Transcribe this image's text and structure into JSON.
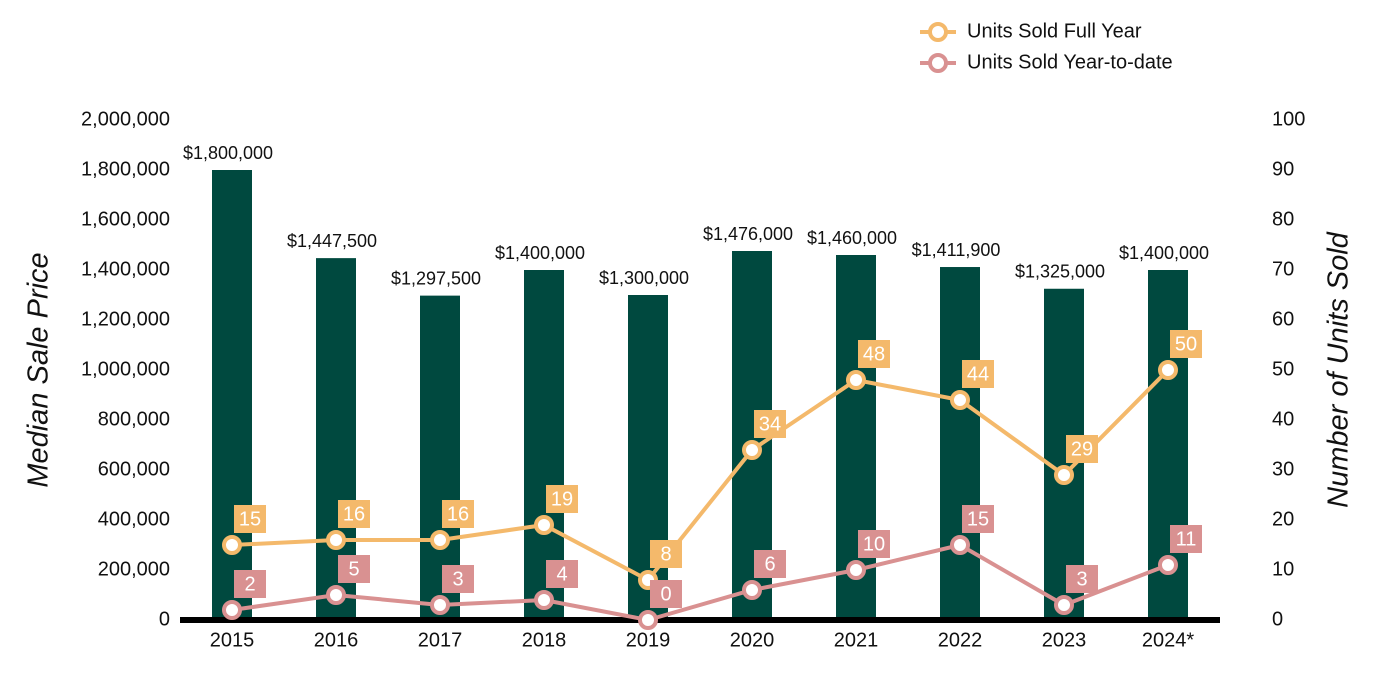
{
  "chart_data": {
    "type": "bar",
    "y_label": "Median Sale Price",
    "y2_label": "Number of Units Sold",
    "categories": [
      "2015",
      "2016",
      "2017",
      "2018",
      "2019",
      "2020",
      "2021",
      "2022",
      "2023",
      "2024*"
    ],
    "values": [
      1800000,
      1447500,
      1297500,
      1400000,
      1300000,
      1476000,
      1460000,
      1411900,
      1325000,
      1400000
    ],
    "value_labels": [
      "$1,800,000",
      "$1,447,500",
      "$1,297,500",
      "$1,400,000",
      "$1,300,000",
      "$1,476,000",
      "$1,460,000",
      "$1,411,900",
      "$1,325,000",
      "$1,400,000"
    ],
    "color": "#00493f",
    "ylim": [
      0,
      2000000
    ],
    "yticks": [
      0,
      {
        "value": 200000,
        "label": "200,000"
      },
      {
        "value": 400000,
        "label": "400,000"
      },
      {
        "value": 600000,
        "label": "600,000"
      },
      {
        "value": 800000,
        "label": "800,000"
      },
      {
        "value": 1000000,
        "label": "1,000,000"
      },
      {
        "value": 1200000,
        "label": "1,200,000"
      },
      {
        "value": 1400000,
        "label": "1,400,000"
      },
      {
        "value": 1600000,
        "label": "1,600,000"
      },
      {
        "value": 1800000,
        "label": "1,800,000"
      },
      {
        "value": 2000000,
        "label": "2,000,000"
      }
    ],
    "y2lim": [
      0,
      100
    ],
    "y2ticks": [
      0,
      10,
      20,
      30,
      40,
      50,
      60,
      70,
      80,
      90,
      100
    ],
    "series": [
      {
        "name": "Units Sold Full Year",
        "type": "line",
        "axis": "y2",
        "color": "#f4b96b",
        "values": [
          15,
          16,
          16,
          19,
          8,
          34,
          48,
          44,
          29,
          50
        ]
      },
      {
        "name": "Units Sold Year-to-date",
        "type": "line",
        "axis": "y2",
        "color": "#d99191",
        "values": [
          2,
          5,
          3,
          4,
          0,
          6,
          10,
          15,
          3,
          11
        ]
      }
    ]
  }
}
